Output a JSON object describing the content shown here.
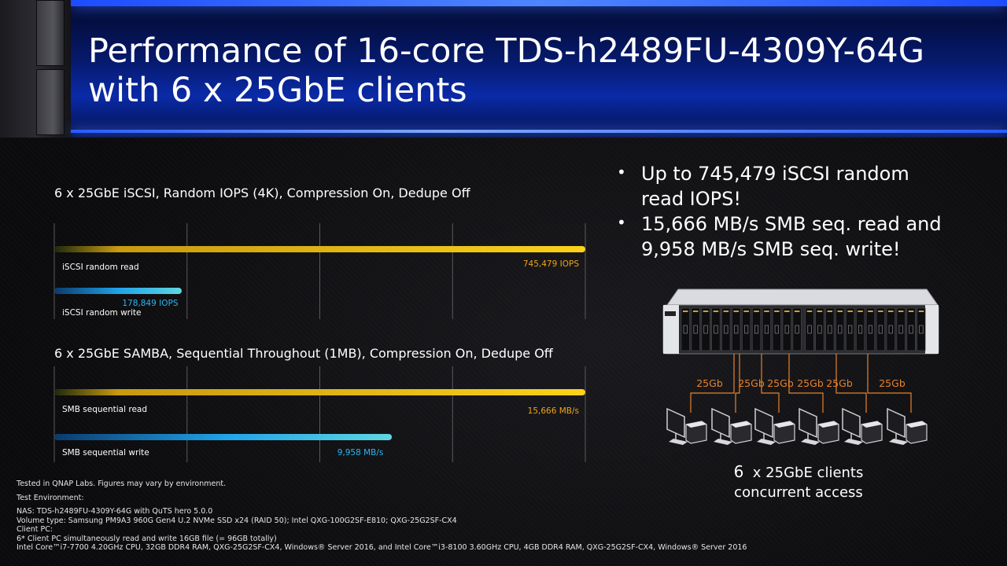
{
  "title_line1": "Performance of 16-core TDS-h2489FU-4309Y-64G",
  "title_line2": "with 6 x 25GbE clients",
  "bullets": [
    {
      "line1": "Up to 745,479 iSCSI random",
      "line2": "read IOPS!"
    },
    {
      "line1": "15,666 MB/s SMB seq. read and",
      "line2": "9,958 MB/s SMB seq. write!"
    }
  ],
  "diagram": {
    "link_labels": [
      "25Gb",
      "25Gb",
      "25Gb",
      "25Gb",
      "25Gb",
      "25Gb"
    ],
    "clients_count": "6",
    "clients_line1": "x 25GbE clients",
    "clients_line2": "concurrent access",
    "link_color": "#e8822a"
  },
  "footnotes": {
    "disclaimer": "Tested in QNAP Labs. Figures may vary by environment.",
    "env_header": "Test Environment:",
    "nas": "NAS: TDS-h2489FU-4309Y-64G with QuTS hero 5.0.0",
    "volume": "Volume type: Samsung PM9A3 960G Gen4 U.2 NVMe SSD x24 (RAID 50); Intel QXG-100G2SF-E810; QXG-25G2SF-CX4",
    "client_header": "Client PC:",
    "client_desc": "6* Client PC simultaneously read and write 16GB file (= 96GB totally)",
    "client_hw": "Intel Core™i7-7700 4.20GHz CPU, 32GB DDR4 RAM, QXG-25G2SF-CX4, Windows® Server 2016, and Intel Core™i3-8100 3.60GHz CPU, 4GB DDR4 RAM, QXG-25G2SF-CX4, Windows® Server 2016"
  },
  "colors": {
    "gold_bar": "#f7c51a",
    "blue_bar": "#1fa2e8",
    "gold_text": "#f0a31b",
    "blue_text": "#2bb6f0",
    "banner_blue": "#0a2aa8"
  },
  "chart_data": [
    {
      "type": "bar",
      "orientation": "horizontal",
      "title": "6 x 25GbE iSCSI, Random IOPS (4K), Compression On, Dedupe Off",
      "categories": [
        "iSCSI random read",
        "iSCSI random write"
      ],
      "values": [
        745479,
        178849
      ],
      "value_labels": [
        "745,479 IOPS",
        "178,849 IOPS"
      ],
      "unit": "IOPS",
      "grid": true,
      "gridlines": 5
    },
    {
      "type": "bar",
      "orientation": "horizontal",
      "title": "6 x 25GbE SAMBA, Sequential Throughout (1MB), Compression On, Dedupe Off",
      "categories": [
        "SMB sequential read",
        "SMB sequential write"
      ],
      "values": [
        15666,
        9958
      ],
      "value_labels": [
        "15,666 MB/s",
        "9,958 MB/s"
      ],
      "unit": "MB/s",
      "grid": true,
      "gridlines": 5
    }
  ]
}
